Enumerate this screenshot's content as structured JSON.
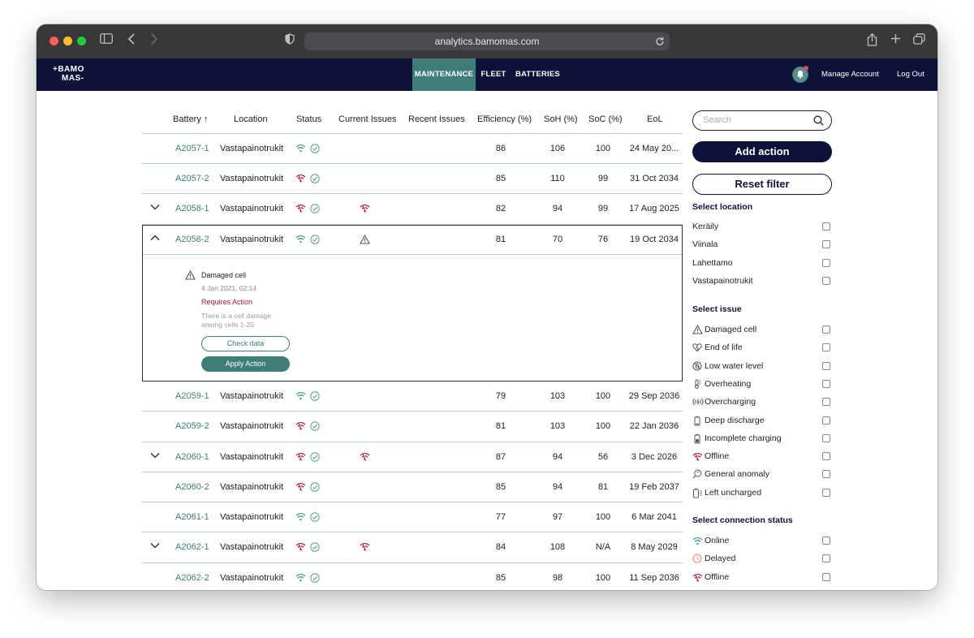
{
  "browser": {
    "url": "analytics.bamomas.com"
  },
  "brand": {
    "logo_line1": "+BAMO",
    "logo_line2": "MAS-"
  },
  "nav": {
    "tabs": [
      {
        "label": "MAINTENANCE",
        "active": true
      },
      {
        "label": "FLEET",
        "active": false
      },
      {
        "label": "BATTERIES",
        "active": false
      }
    ],
    "manage_account": "Manage Account",
    "logout": "Log Out"
  },
  "table": {
    "headers": [
      "Battery ↑",
      "Location",
      "Status",
      "Current Issues",
      "Recent Issues",
      "Efficiency (%)",
      "SoH (%)",
      "SoC (%)",
      "EoL"
    ],
    "rows": [
      {
        "id": "A2057-1",
        "location": "Vastapainotrukit",
        "connection": "online",
        "efficiency": "86",
        "soh": "106",
        "soc": "100",
        "eol": "24 May 20...",
        "expand": "none",
        "current_issue": ""
      },
      {
        "id": "A2057-2",
        "location": "Vastapainotrukit",
        "connection": "offline",
        "efficiency": "85",
        "soh": "110",
        "soc": "99",
        "eol": "31 Oct 2034",
        "expand": "none",
        "current_issue": ""
      },
      {
        "id": "A2058-1",
        "location": "Vastapainotrukit",
        "connection": "offline",
        "efficiency": "82",
        "soh": "94",
        "soc": "99",
        "eol": "17 Aug 2025",
        "expand": "collapsed",
        "current_issue": "offline"
      },
      {
        "id": "A2058-2",
        "location": "Vastapainotrukit",
        "connection": "online",
        "efficiency": "81",
        "soh": "70",
        "soc": "76",
        "eol": "19 Oct 2034",
        "expand": "expanded",
        "current_issue": "damaged-cell"
      },
      {
        "id": "A2059-1",
        "location": "Vastapainotrukit",
        "connection": "online",
        "efficiency": "79",
        "soh": "103",
        "soc": "100",
        "eol": "29 Sep 2036",
        "expand": "none",
        "current_issue": ""
      },
      {
        "id": "A2059-2",
        "location": "Vastapainotrukit",
        "connection": "offline",
        "efficiency": "81",
        "soh": "103",
        "soc": "100",
        "eol": "22 Jan 2036",
        "expand": "none",
        "current_issue": ""
      },
      {
        "id": "A2060-1",
        "location": "Vastapainotrukit",
        "connection": "offline",
        "efficiency": "87",
        "soh": "94",
        "soc": "56",
        "eol": "3 Dec 2026",
        "expand": "collapsed",
        "current_issue": "offline"
      },
      {
        "id": "A2060-2",
        "location": "Vastapainotrukit",
        "connection": "offline",
        "efficiency": "85",
        "soh": "94",
        "soc": "81",
        "eol": "19 Feb 2037",
        "expand": "none",
        "current_issue": ""
      },
      {
        "id": "A2061-1",
        "location": "Vastapainotrukit",
        "connection": "online",
        "efficiency": "77",
        "soh": "97",
        "soc": "100",
        "eol": "6 Mar 2041",
        "expand": "none",
        "current_issue": ""
      },
      {
        "id": "A2062-1",
        "location": "Vastapainotrukit",
        "connection": "offline",
        "efficiency": "84",
        "soh": "108",
        "soc": "N/A",
        "eol": "8 May 2029",
        "expand": "collapsed",
        "current_issue": "offline"
      },
      {
        "id": "A2062-2",
        "location": "Vastapainotrukit",
        "connection": "online",
        "efficiency": "85",
        "soh": "98",
        "soc": "100",
        "eol": "11 Sep 2036",
        "expand": "none",
        "current_issue": ""
      }
    ],
    "expanded_detail": {
      "issue": "Damaged cell",
      "date": "4 Jan 2021, 02:14",
      "status": "Requires Action",
      "description": "There is a cell damage among cells 1-20",
      "check_button": "Check data",
      "apply_button": "Apply Action"
    }
  },
  "sidebar": {
    "search_placeholder": "Search",
    "add_action": "Add action",
    "reset_filter": "Reset filter",
    "location_title": "Select location",
    "locations": [
      "Keräily",
      "Viinala",
      "Lahettamo",
      "Vastapainotrukit"
    ],
    "issue_title": "Select issue",
    "issues": [
      {
        "label": "Damaged cell",
        "icon": "warning-triangle-icon"
      },
      {
        "label": "End of life",
        "icon": "heart-broken-icon"
      },
      {
        "label": "Low water level",
        "icon": "no-water-icon"
      },
      {
        "label": "Overheating",
        "icon": "thermometer-icon"
      },
      {
        "label": "Overcharging",
        "icon": "overcharge-icon"
      },
      {
        "label": "Deep discharge",
        "icon": "battery-low-icon"
      },
      {
        "label": "Incomplete charging",
        "icon": "battery-partial-icon"
      },
      {
        "label": "Offline",
        "icon": "wifi-off-icon"
      },
      {
        "label": "General anomaly",
        "icon": "magnifier-icon"
      },
      {
        "label": "Left uncharged",
        "icon": "battery-empty-icon"
      }
    ],
    "connection_title": "Select connection status",
    "connections": [
      {
        "label": "Online",
        "icon": "wifi-icon"
      },
      {
        "label": "Delayed",
        "icon": "clock-icon"
      },
      {
        "label": "Offline",
        "icon": "wifi-off-icon"
      }
    ]
  },
  "colors": {
    "navy": "#0d1238",
    "teal": "#3e7d78",
    "alert": "#b1173d"
  }
}
